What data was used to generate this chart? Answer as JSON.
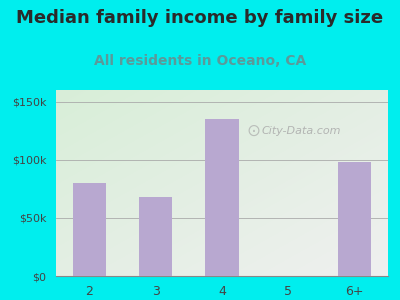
{
  "title": "Median family income by family size",
  "subtitle": "All residents in Oceano, CA",
  "categories": [
    "2",
    "3",
    "4",
    "5",
    "6+"
  ],
  "values": [
    80000,
    68000,
    135000,
    0,
    98000
  ],
  "bar_color": "#b8a8d0",
  "title_color": "#2a2a2a",
  "subtitle_color": "#5a9a9a",
  "outer_bg_color": "#00eeee",
  "yticks": [
    0,
    50000,
    100000,
    150000
  ],
  "ytick_labels": [
    "$0",
    "$50k",
    "$100k",
    "$150k"
  ],
  "ylim": [
    0,
    160000
  ],
  "watermark": "City-Data.com",
  "title_fontsize": 13,
  "subtitle_fontsize": 10
}
